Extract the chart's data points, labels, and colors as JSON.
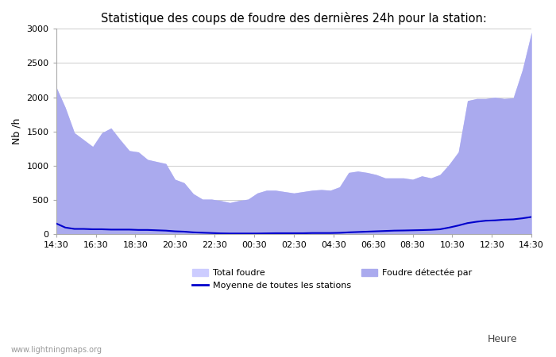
{
  "title": "Statistique des coups de foudre des dernières 24h pour la station:",
  "xlabel": "Heure",
  "ylabel": "Nb /h",
  "ylim": [
    0,
    3000
  ],
  "yticks": [
    0,
    500,
    1000,
    1500,
    2000,
    2500,
    3000
  ],
  "x_labels": [
    "14:30",
    "16:30",
    "18:30",
    "20:30",
    "22:30",
    "00:30",
    "02:30",
    "04:30",
    "06:30",
    "08:30",
    "10:30",
    "12:30",
    "14:30"
  ],
  "total_foudre_color": "#ccccff",
  "foudre_detectee_color": "#aaaaee",
  "moyenne_color": "#0000cc",
  "background_color": "#ffffff",
  "watermark": "www.lightningmaps.org",
  "total_foudre": [
    2150,
    1850,
    1480,
    1380,
    1280,
    1480,
    1550,
    1380,
    1220,
    1200,
    1090,
    1060,
    1030,
    800,
    750,
    590,
    510,
    510,
    490,
    460,
    490,
    510,
    600,
    640,
    640,
    620,
    600,
    620,
    640,
    650,
    640,
    690,
    900,
    920,
    900,
    870,
    820,
    820,
    820,
    800,
    850,
    820,
    870,
    1020,
    1200,
    1950,
    1980,
    1980,
    2000,
    1980,
    1990,
    2400,
    2950
  ],
  "foudre_detectee": [
    2150,
    1850,
    1480,
    1380,
    1280,
    1480,
    1550,
    1380,
    1220,
    1200,
    1090,
    1060,
    1030,
    800,
    750,
    590,
    510,
    510,
    490,
    460,
    490,
    510,
    600,
    640,
    640,
    620,
    600,
    620,
    640,
    650,
    640,
    690,
    900,
    920,
    900,
    870,
    820,
    820,
    820,
    800,
    850,
    820,
    870,
    1020,
    1200,
    1950,
    1980,
    1980,
    2000,
    1980,
    1990,
    2400,
    2950
  ],
  "moyenne": [
    155,
    95,
    75,
    75,
    70,
    70,
    65,
    65,
    65,
    60,
    60,
    55,
    50,
    40,
    35,
    25,
    20,
    15,
    10,
    8,
    8,
    8,
    8,
    10,
    12,
    12,
    12,
    12,
    15,
    15,
    15,
    18,
    25,
    30,
    35,
    40,
    45,
    50,
    52,
    55,
    58,
    62,
    70,
    95,
    125,
    160,
    180,
    195,
    200,
    210,
    215,
    230,
    250
  ]
}
